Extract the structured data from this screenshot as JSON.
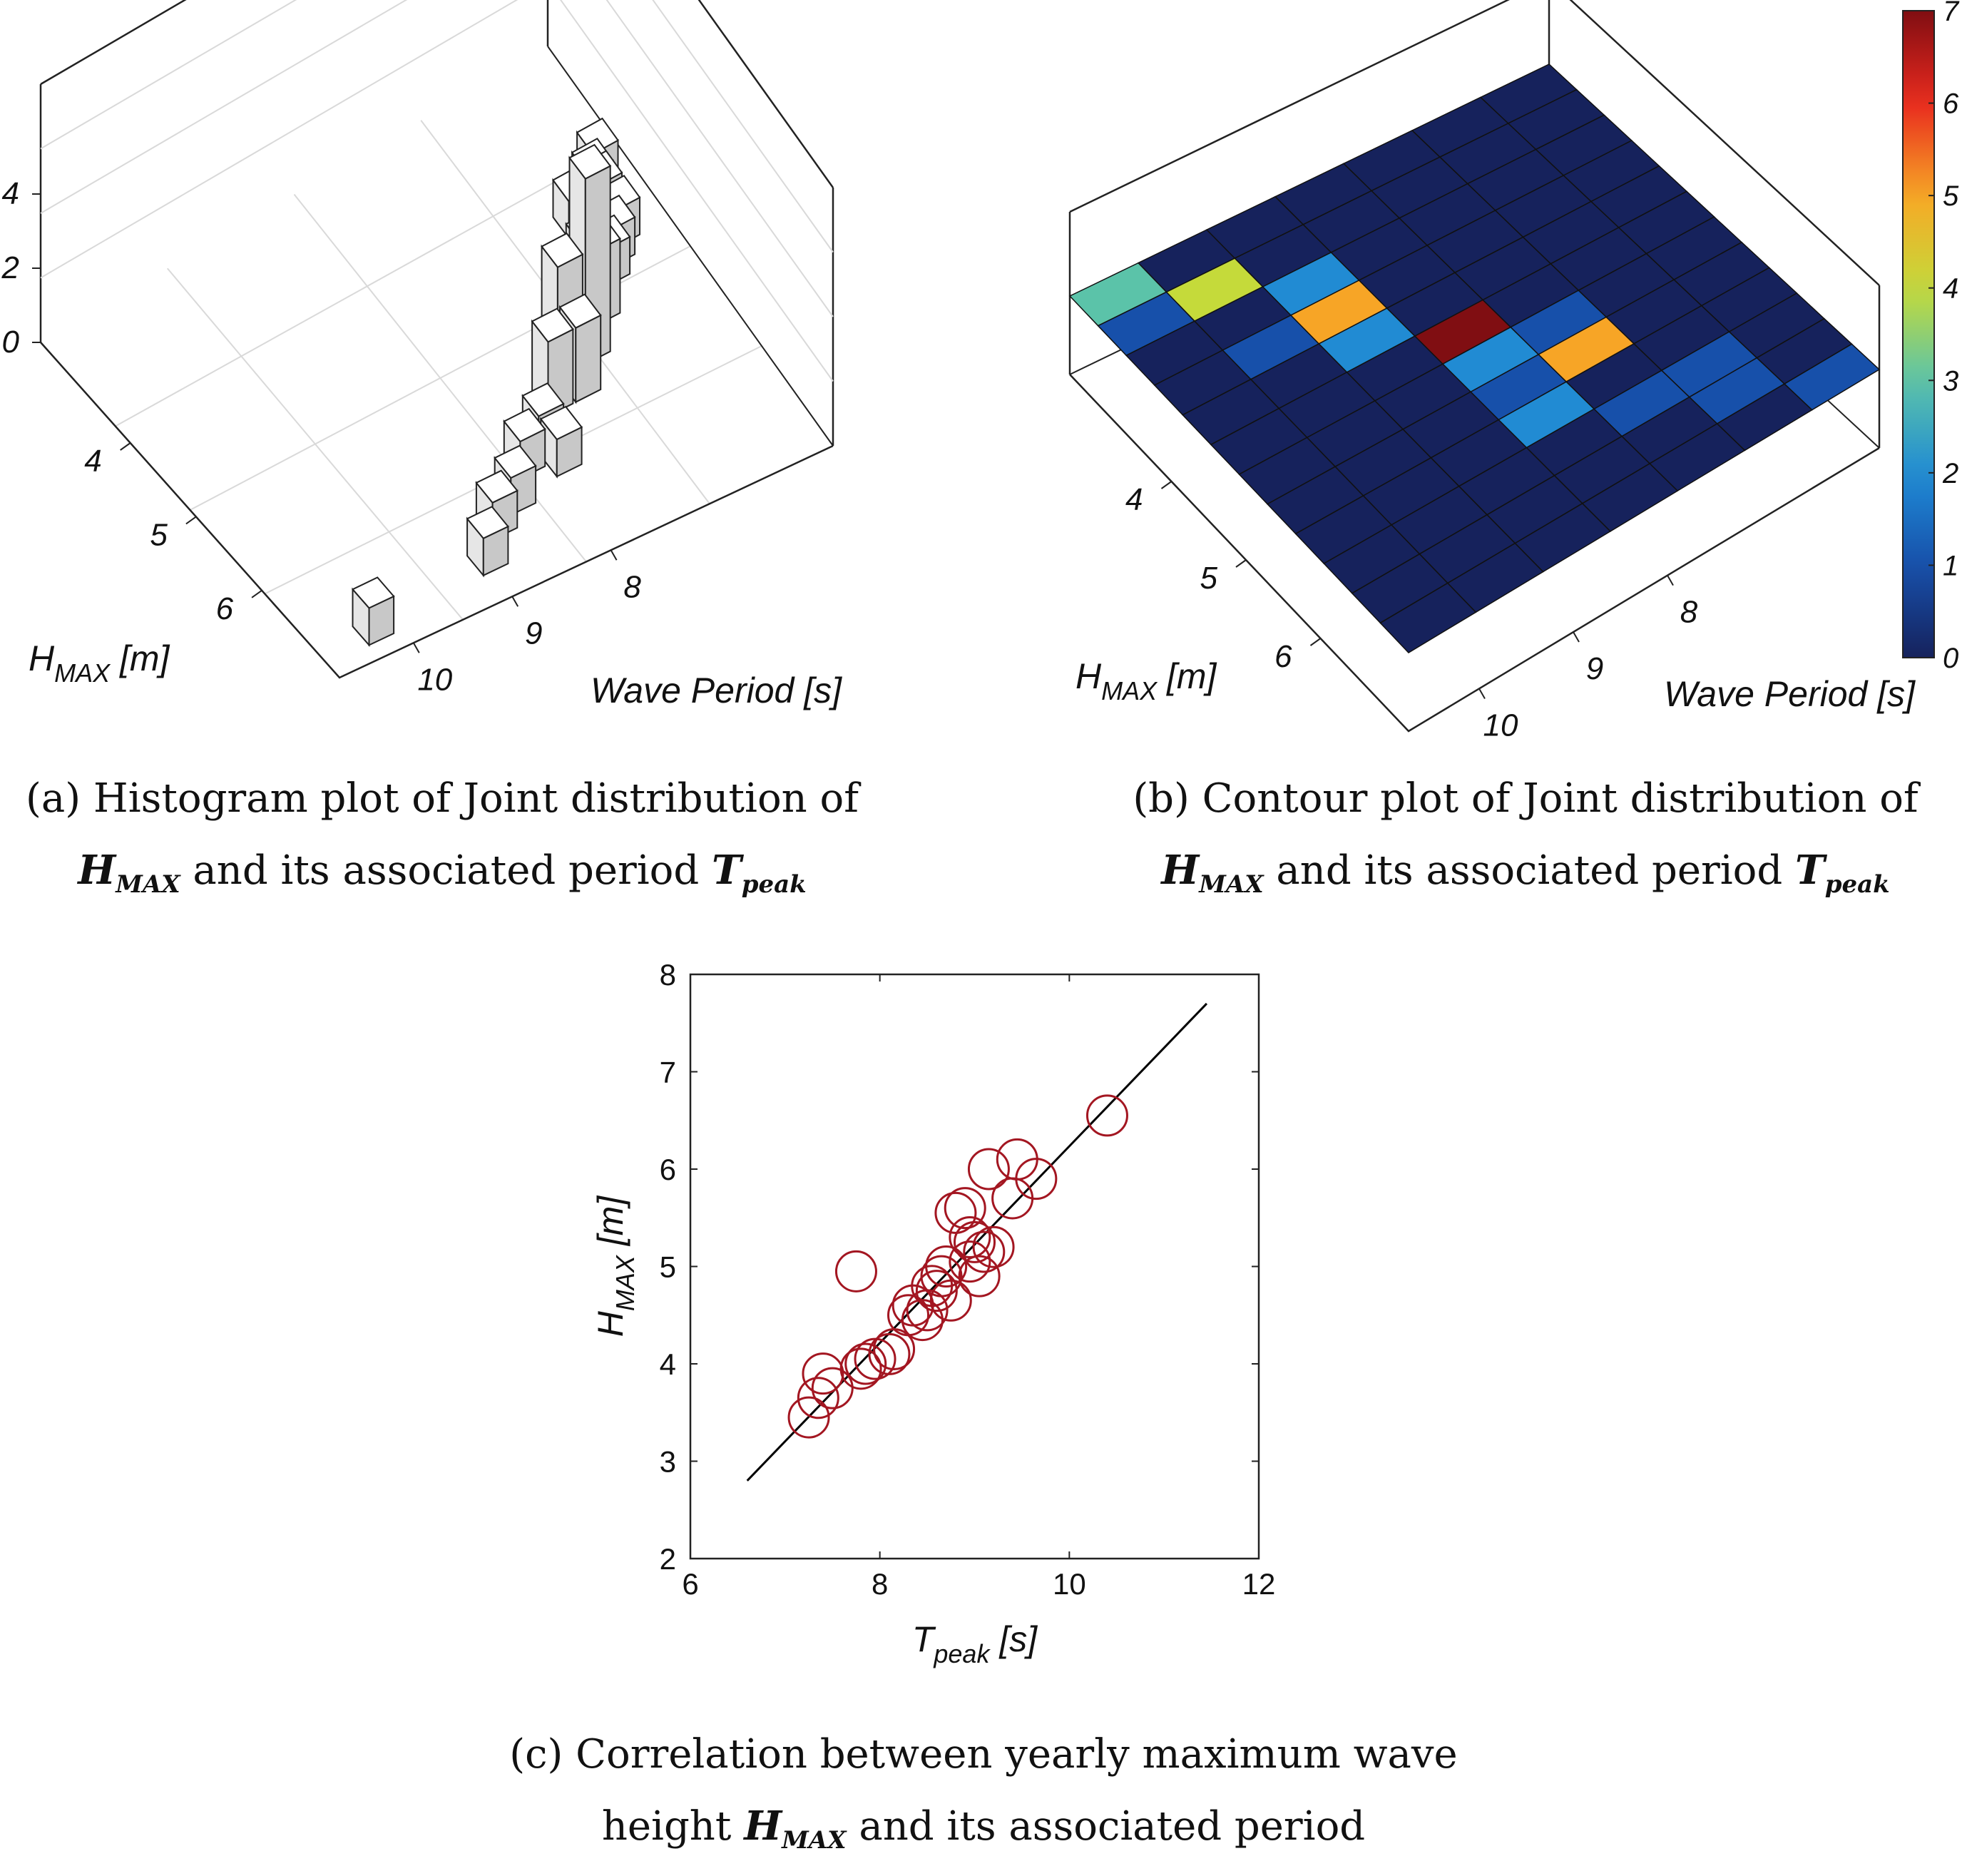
{
  "chart_data": [
    {
      "panel": "a",
      "type": "bar3d",
      "z_ticks": [
        "0",
        "2",
        "4"
      ],
      "y_ticks": [
        "4",
        "5",
        "6"
      ],
      "x_ticks": [
        "8",
        "9",
        "10"
      ],
      "ylabel_main": "H",
      "ylabel_sub": "MAX",
      "ylabel_unit": " [m]",
      "xlabel": "Wave Period [s]",
      "bars": [
        {
          "h": 4.4,
          "t": 7.3,
          "count": 1
        },
        {
          "h": 4.5,
          "t": 7.4,
          "count": 1
        },
        {
          "h": 4.6,
          "t": 7.4,
          "count": 1
        },
        {
          "h": 4.6,
          "t": 7.6,
          "count": 1
        },
        {
          "h": 4.8,
          "t": 7.4,
          "count": 1
        },
        {
          "h": 4.9,
          "t": 7.5,
          "count": 1
        },
        {
          "h": 4.9,
          "t": 7.7,
          "count": 1
        },
        {
          "h": 5.0,
          "t": 7.6,
          "count": 1
        },
        {
          "h": 5.0,
          "t": 7.8,
          "count": 1
        },
        {
          "h": 5.2,
          "t": 7.8,
          "count": 2
        },
        {
          "h": 5.2,
          "t": 8.0,
          "count": 2
        },
        {
          "h": 5.4,
          "t": 8.0,
          "count": 5
        },
        {
          "h": 5.4,
          "t": 8.2,
          "count": 3
        },
        {
          "h": 5.6,
          "t": 8.2,
          "count": 2
        },
        {
          "h": 5.6,
          "t": 8.4,
          "count": 2
        },
        {
          "h": 5.8,
          "t": 8.6,
          "count": 1
        },
        {
          "h": 5.9,
          "t": 8.8,
          "count": 1
        },
        {
          "h": 6.0,
          "t": 8.6,
          "count": 1
        },
        {
          "h": 6.1,
          "t": 9.0,
          "count": 1
        },
        {
          "h": 6.2,
          "t": 9.2,
          "count": 1
        },
        {
          "h": 6.4,
          "t": 9.4,
          "count": 1
        },
        {
          "h": 6.5,
          "t": 10.3,
          "count": 1
        }
      ]
    },
    {
      "panel": "b",
      "type": "heatmap",
      "y_ticks": [
        "4",
        "5",
        "6"
      ],
      "x_ticks": [
        "8",
        "9",
        "10"
      ],
      "ylabel_main": "H",
      "ylabel_sub": "MAX",
      "ylabel_unit": " [m]",
      "xlabel": "Wave Period [s]",
      "colorbar_ticks": [
        "0",
        "1",
        "2",
        "3",
        "4",
        "5",
        "6",
        "7"
      ],
      "clim": [
        0,
        7
      ],
      "grid": [
        [
          0,
          0,
          0,
          0,
          0,
          0,
          3
        ],
        [
          0,
          0,
          0,
          0,
          0,
          4,
          1
        ],
        [
          0,
          0,
          0,
          0,
          2,
          0,
          0
        ],
        [
          0,
          0,
          0,
          0,
          5,
          1,
          0
        ],
        [
          0,
          0,
          0,
          0,
          2,
          0,
          0
        ],
        [
          0,
          0,
          0,
          7,
          0,
          0,
          0
        ],
        [
          0,
          0,
          1,
          2,
          0,
          0,
          0
        ],
        [
          0,
          0,
          5,
          1,
          0,
          0,
          0
        ],
        [
          0,
          0,
          0,
          2,
          0,
          0,
          0
        ],
        [
          0,
          1,
          1,
          0,
          0,
          0,
          0
        ],
        [
          0,
          1,
          0,
          0,
          0,
          0,
          0
        ],
        [
          1,
          0,
          0,
          0,
          0,
          0,
          0
        ]
      ]
    },
    {
      "panel": "c",
      "type": "scatter",
      "xlabel_main": "T",
      "xlabel_sub": "peak",
      "xlabel_unit": " [s]",
      "ylabel_main": "H",
      "ylabel_sub": "MAX",
      "ylabel_unit": " [m]",
      "xlim": [
        6,
        12
      ],
      "ylim": [
        2,
        8
      ],
      "x_ticks": [
        "6",
        "8",
        "10",
        "12"
      ],
      "y_ticks": [
        "2",
        "3",
        "4",
        "5",
        "6",
        "7",
        "8"
      ],
      "marker_color": "#a31621",
      "line_color": "#000000",
      "points": [
        {
          "x": 7.25,
          "y": 3.45
        },
        {
          "x": 7.35,
          "y": 3.65
        },
        {
          "x": 7.4,
          "y": 3.9
        },
        {
          "x": 7.5,
          "y": 3.75
        },
        {
          "x": 7.75,
          "y": 4.95
        },
        {
          "x": 7.8,
          "y": 3.95
        },
        {
          "x": 7.85,
          "y": 4.0
        },
        {
          "x": 7.95,
          "y": 4.05
        },
        {
          "x": 8.1,
          "y": 4.1
        },
        {
          "x": 8.15,
          "y": 4.15
        },
        {
          "x": 8.3,
          "y": 4.5
        },
        {
          "x": 8.35,
          "y": 4.6
        },
        {
          "x": 8.45,
          "y": 4.45
        },
        {
          "x": 8.5,
          "y": 4.55
        },
        {
          "x": 8.55,
          "y": 4.8
        },
        {
          "x": 8.65,
          "y": 4.9
        },
        {
          "x": 8.7,
          "y": 5.0
        },
        {
          "x": 8.75,
          "y": 4.65
        },
        {
          "x": 8.8,
          "y": 5.55
        },
        {
          "x": 8.9,
          "y": 5.6
        },
        {
          "x": 8.95,
          "y": 5.05
        },
        {
          "x": 9.0,
          "y": 5.25
        },
        {
          "x": 9.05,
          "y": 4.9
        },
        {
          "x": 9.1,
          "y": 5.15
        },
        {
          "x": 9.15,
          "y": 6.0
        },
        {
          "x": 9.2,
          "y": 5.2
        },
        {
          "x": 9.4,
          "y": 5.7
        },
        {
          "x": 9.45,
          "y": 6.1
        },
        {
          "x": 9.65,
          "y": 5.9
        },
        {
          "x": 10.4,
          "y": 6.55
        },
        {
          "x": 8.6,
          "y": 4.75
        },
        {
          "x": 8.95,
          "y": 5.3
        }
      ],
      "fit_line": {
        "x": [
          6.6,
          11.45
        ],
        "y": [
          2.8,
          7.7
        ]
      }
    }
  ],
  "captions": {
    "a": {
      "line1": "(a) Histogram plot of Joint distribution of",
      "sym1": "H",
      "sub1": "MAX",
      "mid": " and its associated period ",
      "sym2": "T",
      "sub2": "peak"
    },
    "b": {
      "line1": "(b) Contour plot of Joint distribution of",
      "sym1": "H",
      "sub1": "MAX",
      "mid": " and its associated period ",
      "sym2": "T",
      "sub2": "peak"
    },
    "c": {
      "line1": "(c) Correlation between yearly maximum wave",
      "pre2": "height ",
      "sym1": "H",
      "sub1": "MAX",
      "post2": " and its associated period"
    }
  },
  "colors": {
    "bar_face": "#e6e6e6",
    "bar_top": "#ffffff",
    "bar_side": "#c8c8c8",
    "grid_line": "#d9d9d9"
  }
}
